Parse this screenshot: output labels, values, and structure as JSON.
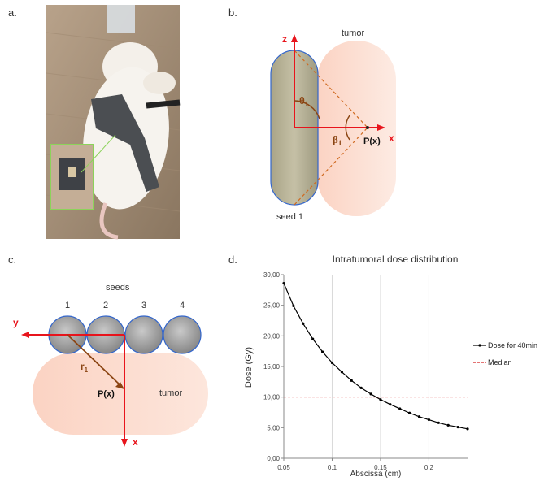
{
  "panels": {
    "a": {
      "label": "a."
    },
    "b": {
      "label": "b.",
      "axis_z": "z",
      "axis_x": "x",
      "tumor": "tumor",
      "seed": "seed 1",
      "theta": "θ",
      "theta_sub": "1",
      "beta": "β",
      "beta_sub": "1",
      "point": "P(x)"
    },
    "c": {
      "label": "c.",
      "seeds_title": "seeds",
      "seed_numbers": [
        "1",
        "2",
        "3",
        "4"
      ],
      "axis_y": "y",
      "axis_x": "x",
      "r": "r",
      "r_sub": "1",
      "point": "P(x)",
      "tumor": "tumor"
    },
    "d": {
      "label": "d."
    }
  },
  "colors": {
    "red_axis": "#e8141c",
    "brown": "#8b4513",
    "tumor_fill": "#fbd2c2",
    "seed_fill": "#b8b39a",
    "seed_edge": "#2e59c8"
  },
  "chart_data": {
    "type": "line",
    "title": "Intratumoral dose distribution",
    "xlabel": "Abscissa (cm)",
    "ylabel": "Dose (Gy)",
    "xlim": [
      0.05,
      0.24
    ],
    "ylim": [
      0,
      30
    ],
    "x_ticks": [
      0.05,
      0.1,
      0.15,
      0.2
    ],
    "x_tick_labels": [
      "0,05",
      "0,1",
      "0,15",
      "0,2"
    ],
    "y_ticks": [
      0,
      5,
      10,
      15,
      20,
      25,
      30
    ],
    "y_tick_labels": [
      "0,00",
      "5,00",
      "10,00",
      "15,00",
      "20,00",
      "25,00",
      "30,00"
    ],
    "grid": "vertical",
    "legend": "right",
    "series": [
      {
        "name": "Dose for 40min",
        "style": "solid-markers",
        "color": "#000000",
        "x": [
          0.05,
          0.06,
          0.07,
          0.08,
          0.09,
          0.1,
          0.11,
          0.12,
          0.13,
          0.14,
          0.15,
          0.16,
          0.17,
          0.18,
          0.19,
          0.2,
          0.21,
          0.22,
          0.23,
          0.24
        ],
        "values": [
          28.6,
          24.9,
          22.0,
          19.5,
          17.4,
          15.6,
          14.1,
          12.7,
          11.5,
          10.5,
          9.6,
          8.8,
          8.1,
          7.4,
          6.8,
          6.3,
          5.8,
          5.4,
          5.1,
          4.8
        ]
      },
      {
        "name": "Median",
        "style": "dashed",
        "color": "#d42020",
        "x": [
          0.05,
          0.24
        ],
        "values": [
          10,
          10
        ]
      }
    ]
  }
}
